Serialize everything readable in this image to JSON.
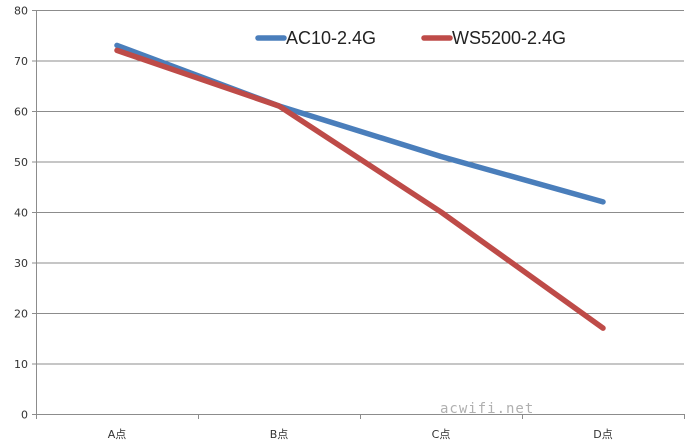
{
  "chart_data": {
    "type": "line",
    "categories": [
      "A点",
      "B点",
      "C点",
      "D点"
    ],
    "series": [
      {
        "name": "AC10-2.4G",
        "color": "#4a7ebb",
        "values": [
          73,
          61,
          51,
          42
        ]
      },
      {
        "name": "WS5200-2.4G",
        "color": "#be4b48",
        "values": [
          72,
          61,
          40,
          17
        ]
      }
    ],
    "ylim": [
      0,
      80
    ],
    "yticks": [
      0,
      10,
      20,
      30,
      40,
      50,
      60,
      70,
      80
    ],
    "grid": true,
    "legend_position": "top-center",
    "title": "",
    "xlabel": "",
    "ylabel": ""
  },
  "watermark": "acwifi.net"
}
